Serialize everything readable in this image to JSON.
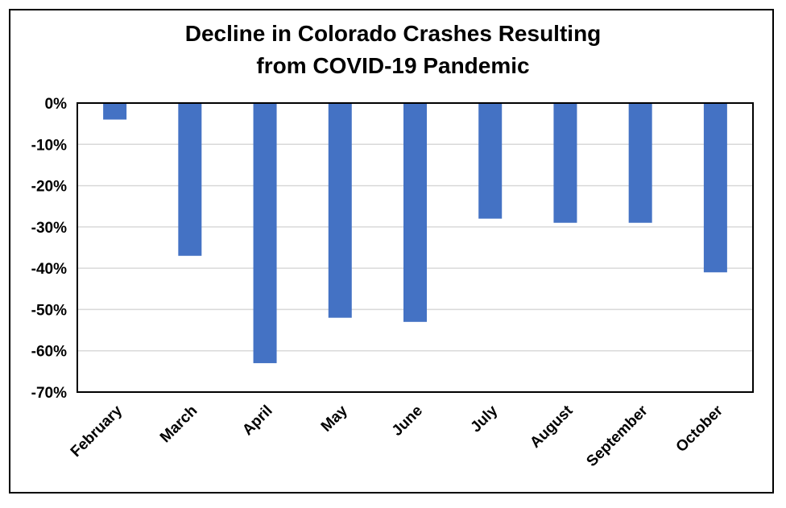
{
  "chart_data": {
    "type": "bar",
    "title": [
      "Decline in Colorado Crashes Resulting",
      "from COVID-19 Pandemic"
    ],
    "categories": [
      "February",
      "March",
      "April",
      "May",
      "June",
      "July",
      "August",
      "September",
      "October"
    ],
    "values": [
      -4,
      -37,
      -63,
      -52,
      -53,
      -28,
      -29,
      -29,
      -41
    ],
    "value_format": "percent",
    "ylim": [
      -70,
      0
    ],
    "yticks": [
      0,
      -10,
      -20,
      -30,
      -40,
      -50,
      -60,
      -70
    ],
    "ytick_labels": [
      "0%",
      "-10%",
      "-20%",
      "-30%",
      "-40%",
      "-50%",
      "-60%",
      "-70%"
    ],
    "grid": true,
    "legend": "none",
    "bar_color": "#4472C4",
    "grid_color": "#D9D9D9"
  }
}
